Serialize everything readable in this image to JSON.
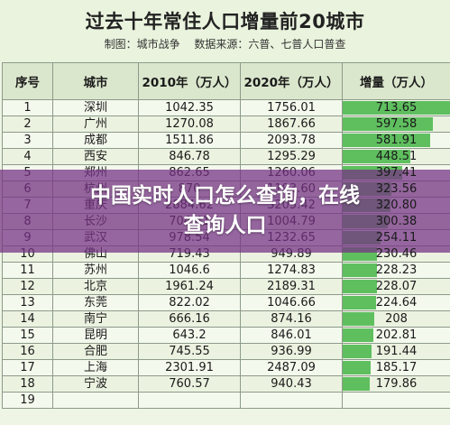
{
  "header": {
    "title": "过去十年常住人口增量前20城市",
    "author": "制图：城市战争",
    "source": "数据来源：六普、七普人口普查"
  },
  "table": {
    "columns": [
      "序号",
      "城市",
      "2010年（万人）",
      "2020年（万人）",
      "增量（万人）"
    ],
    "rows": [
      [
        "1",
        "深圳",
        "1042.35",
        "1756.01",
        "713.65"
      ],
      [
        "2",
        "广州",
        "1270.08",
        "1867.66",
        "597.58"
      ],
      [
        "3",
        "成都",
        "1511.86",
        "2093.78",
        "581.91"
      ],
      [
        "4",
        "西安",
        "846.78",
        "1295.29",
        "448.51"
      ],
      [
        "5",
        "郑州",
        "862.65",
        "1260.06",
        "397.41"
      ],
      [
        "6",
        "杭州",
        "870",
        "1193.60",
        "323.56"
      ],
      [
        "7",
        "重庆",
        "2884.62",
        "3205.42",
        "320.80"
      ],
      [
        "8",
        "长沙",
        "704.41",
        "1004.79",
        "300.38"
      ],
      [
        "9",
        "武汉",
        "978.54",
        "1232.65",
        "254.11"
      ],
      [
        "10",
        "佛山",
        "719.43",
        "949.89",
        "230.46"
      ],
      [
        "11",
        "苏州",
        "1046.6",
        "1274.83",
        "228.23"
      ],
      [
        "12",
        "北京",
        "1961.24",
        "2189.31",
        "228.07"
      ],
      [
        "13",
        "东莞",
        "822.02",
        "1046.66",
        "224.64"
      ],
      [
        "14",
        "南宁",
        "666.16",
        "874.16",
        "208"
      ],
      [
        "15",
        "昆明",
        "643.2",
        "846.01",
        "202.81"
      ],
      [
        "16",
        "合肥",
        "745.55",
        "936.99",
        "191.44"
      ],
      [
        "17",
        "上海",
        "2301.91",
        "2487.09",
        "185.17"
      ],
      [
        "18",
        "宁波",
        "760.57",
        "940.43",
        "179.86"
      ],
      [
        "19",
        "",
        "",
        "",
        ""
      ]
    ]
  },
  "overlay": {
    "line1": "中国实时人口怎么查询，在线",
    "line2": "查询人口"
  },
  "colors": {
    "bar": "#5fbf5f",
    "overlay": "#763284",
    "background": "#eef5e4"
  }
}
